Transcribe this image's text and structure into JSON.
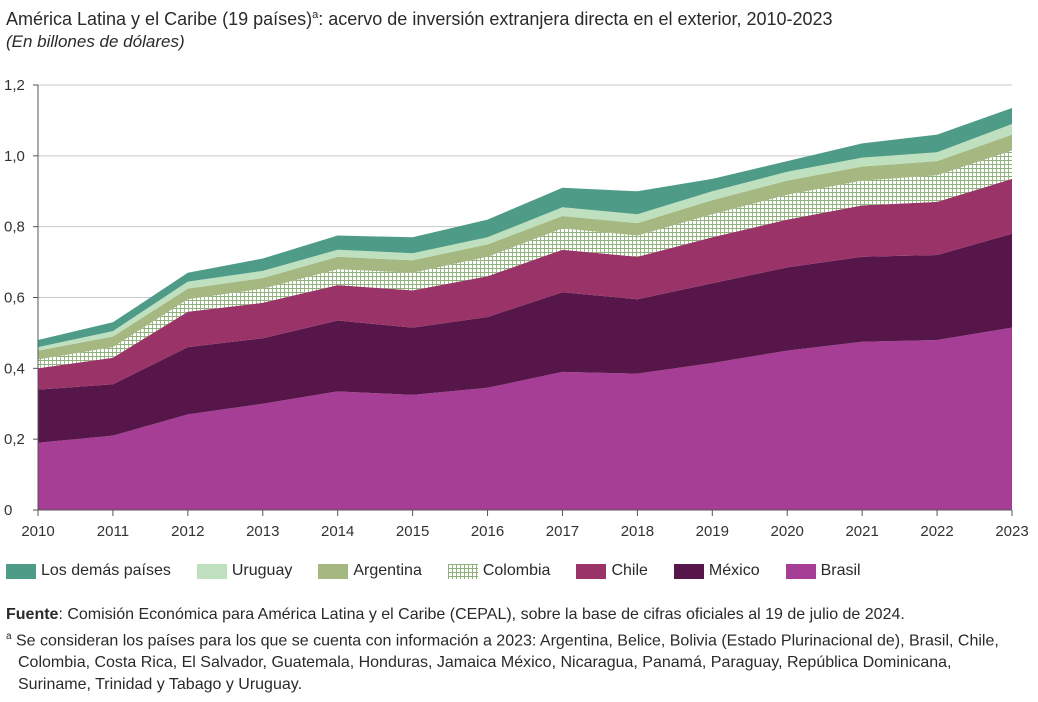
{
  "title": {
    "main": "América Latina y el Caribe (19 países)",
    "sup": "a",
    "rest": ": acervo de inversión extranjera directa en el exterior, 2010-2023",
    "subtitle": "(En billones de dólares)"
  },
  "chart_data": {
    "type": "area",
    "stacked": true,
    "x": [
      "2010",
      "2011",
      "2012",
      "2013",
      "2014",
      "2015",
      "2016",
      "2017",
      "2018",
      "2019",
      "2020",
      "2021",
      "2022",
      "2023"
    ],
    "ylim": [
      0,
      1.2
    ],
    "yticks": [
      "0",
      "0,2",
      "0,4",
      "0,6",
      "0,8",
      "1,0",
      "1,2"
    ],
    "ytick_values": [
      0,
      0.2,
      0.4,
      0.6,
      0.8,
      1.0,
      1.2
    ],
    "grid": true,
    "legend_position": "bottom",
    "series": [
      {
        "name": "Brasil",
        "color": "#a63e95",
        "values": [
          0.19,
          0.21,
          0.27,
          0.3,
          0.335,
          0.325,
          0.345,
          0.39,
          0.385,
          0.415,
          0.45,
          0.475,
          0.48,
          0.515
        ]
      },
      {
        "name": "México",
        "color": "#56164a",
        "values": [
          0.15,
          0.145,
          0.19,
          0.185,
          0.2,
          0.19,
          0.2,
          0.225,
          0.21,
          0.225,
          0.235,
          0.24,
          0.24,
          0.265
        ]
      },
      {
        "name": "Chile",
        "color": "#9a3468",
        "values": [
          0.06,
          0.075,
          0.1,
          0.1,
          0.1,
          0.105,
          0.115,
          0.12,
          0.12,
          0.13,
          0.135,
          0.145,
          0.15,
          0.155
        ]
      },
      {
        "name": "Colombia",
        "color": "pattern",
        "values": [
          0.025,
          0.03,
          0.035,
          0.04,
          0.045,
          0.05,
          0.055,
          0.06,
          0.06,
          0.065,
          0.07,
          0.07,
          0.075,
          0.08
        ]
      },
      {
        "name": "Argentina",
        "color": "#a6b882",
        "values": [
          0.025,
          0.03,
          0.03,
          0.03,
          0.035,
          0.035,
          0.035,
          0.035,
          0.035,
          0.04,
          0.04,
          0.04,
          0.04,
          0.045
        ]
      },
      {
        "name": "Uruguay",
        "color": "#bfe0bf",
        "values": [
          0.01,
          0.015,
          0.02,
          0.02,
          0.02,
          0.02,
          0.02,
          0.025,
          0.025,
          0.025,
          0.025,
          0.025,
          0.025,
          0.03
        ]
      },
      {
        "name": "Los demás países",
        "color": "#4e9c88",
        "values": [
          0.02,
          0.025,
          0.025,
          0.035,
          0.04,
          0.045,
          0.05,
          0.055,
          0.065,
          0.035,
          0.03,
          0.04,
          0.05,
          0.045
        ]
      }
    ],
    "legend_order": [
      "Los demás países",
      "Uruguay",
      "Argentina",
      "Colombia",
      "Chile",
      "México",
      "Brasil"
    ]
  },
  "notes": {
    "source_label": "Fuente",
    "source_text": ":  Comisión Económica para América Latina y el Caribe (CEPAL), sobre la base de cifras oficiales al 19 de julio de 2024.",
    "footnote_mark": "a",
    "footnote_text": " Se consideran los países para los que se cuenta con información a 2023: Argentina, Belice, Bolivia (Estado Plurinacional de), Brasil, Chile, Colombia, Costa Rica, El Salvador, Guatemala, Honduras, Jamaica México, Nicaragua, Panamá, Paraguay, República Dominicana, Suriname, Trinidad y Tabago y Uruguay."
  }
}
